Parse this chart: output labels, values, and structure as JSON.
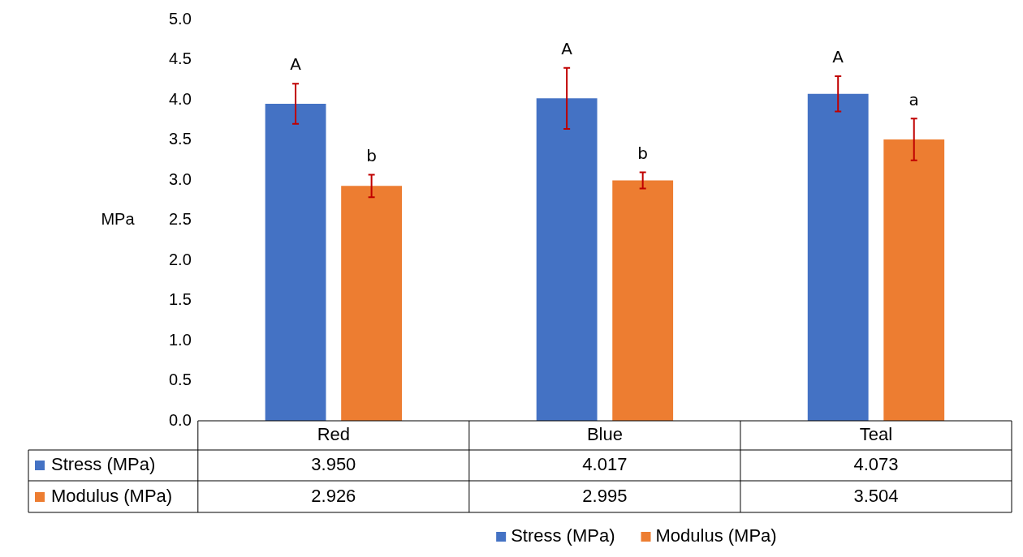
{
  "chart_data": {
    "type": "bar",
    "ylabel": "MPa",
    "categories": [
      "Red",
      "Blue",
      "Teal"
    ],
    "series": [
      {
        "name": "Stress (MPa)",
        "color": "#4472c4",
        "values": [
          3.95,
          4.017,
          4.073
        ],
        "errors": [
          0.25,
          0.38,
          0.22
        ],
        "value_labels": [
          "3.950",
          "4.017",
          "4.073"
        ]
      },
      {
        "name": "Modulus (MPa)",
        "color": "#ed7d31",
        "values": [
          2.926,
          2.995,
          3.504
        ],
        "errors": [
          0.14,
          0.1,
          0.26
        ],
        "value_labels": [
          "2.926",
          "2.995",
          "3.504"
        ]
      }
    ],
    "ylim": [
      0,
      5
    ],
    "yticks": [
      {
        "value": 0,
        "label": "0.0"
      },
      0.5,
      {
        "value": 1,
        "label": "1.0"
      },
      1.5,
      {
        "value": 2,
        "label": "2.0"
      },
      2.5,
      {
        "value": 3,
        "label": "3.0"
      },
      3.5,
      {
        "value": 4,
        "label": "4.0"
      },
      4.5,
      {
        "value": 5,
        "label": "5.0"
      }
    ],
    "annotations": [
      "A",
      "b",
      "A",
      "b",
      "A",
      "a"
    ],
    "grid": false,
    "legend": "bottom"
  }
}
